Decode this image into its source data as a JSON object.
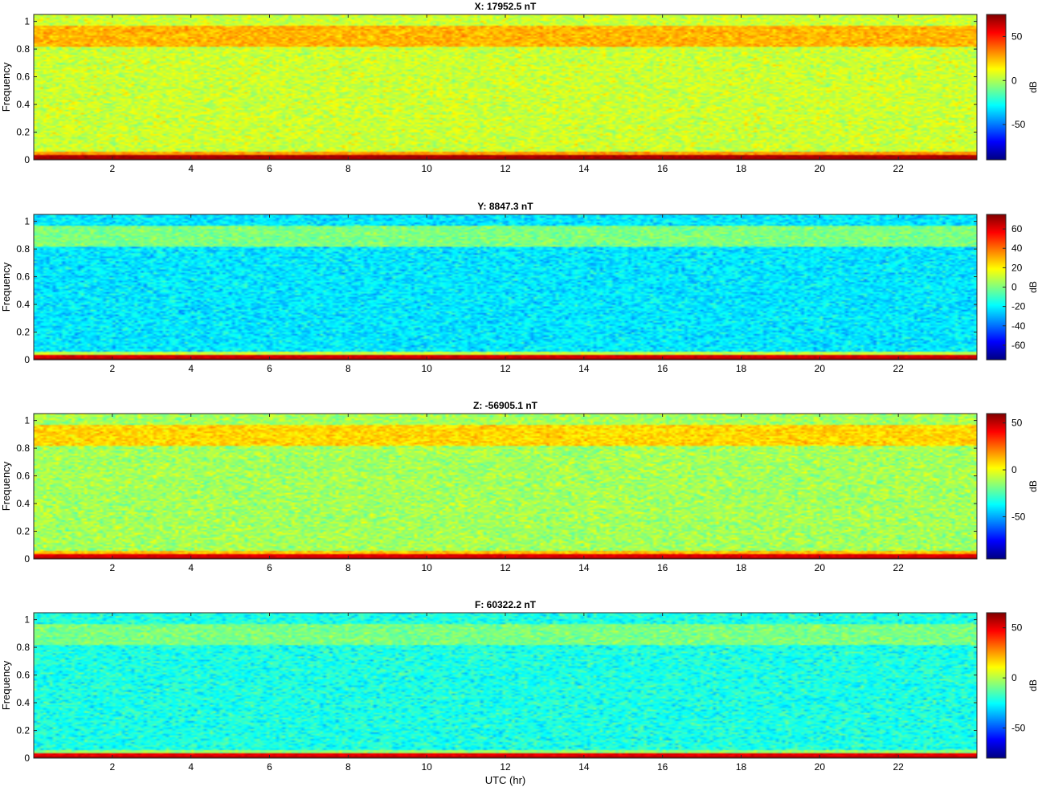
{
  "chart_data": [
    {
      "type": "heatmap",
      "title": "X: 17952.5 nT",
      "ylabel": "Frequency",
      "xlabel": "",
      "x_ticks": [
        2,
        4,
        6,
        8,
        10,
        12,
        14,
        16,
        18,
        20,
        22
      ],
      "y_ticks": [
        0,
        0.2,
        0.4,
        0.6,
        0.8,
        1
      ],
      "xlim": [
        0,
        24
      ],
      "ylim": [
        0,
        1.05
      ],
      "colorbar": {
        "label": "dB",
        "ticks": [
          -50,
          0,
          50
        ],
        "range": [
          -90,
          75
        ]
      },
      "levels": {
        "floor": 5,
        "band_upper": 25,
        "band_lower": 30,
        "base": 68,
        "dark_line": 72
      }
    },
    {
      "type": "heatmap",
      "title": "Y: 8847.3 nT",
      "ylabel": "Frequency",
      "xlabel": "",
      "x_ticks": [
        2,
        4,
        6,
        8,
        10,
        12,
        14,
        16,
        18,
        20,
        22
      ],
      "y_ticks": [
        0,
        0.2,
        0.4,
        0.6,
        0.8,
        1
      ],
      "xlim": [
        0,
        24
      ],
      "ylim": [
        0,
        1.05
      ],
      "colorbar": {
        "label": "dB",
        "ticks": [
          -60,
          -40,
          -20,
          0,
          20,
          40,
          60
        ],
        "range": [
          -75,
          75
        ]
      },
      "levels": {
        "floor": -22,
        "band_upper": 0,
        "band_lower": 10,
        "base": 62,
        "dark_line": 72
      }
    },
    {
      "type": "heatmap",
      "title": "Z: -56905.1 nT",
      "ylabel": "Frequency",
      "xlabel": "",
      "x_ticks": [
        2,
        4,
        6,
        8,
        10,
        12,
        14,
        16,
        18,
        20,
        22
      ],
      "y_ticks": [
        0,
        0.2,
        0.4,
        0.6,
        0.8,
        1
      ],
      "xlim": [
        0,
        24
      ],
      "ylim": [
        0,
        1.05
      ],
      "colorbar": {
        "label": "dB",
        "ticks": [
          -50,
          0,
          50
        ],
        "range": [
          -95,
          60
        ]
      },
      "levels": {
        "floor": -12,
        "band_upper": 8,
        "band_lower": 12,
        "base": 45,
        "dark_line": 55
      }
    },
    {
      "type": "heatmap",
      "title": "F: 60322.2 nT",
      "ylabel": "Frequency",
      "xlabel": "UTC (hr)",
      "x_ticks": [
        2,
        4,
        6,
        8,
        10,
        12,
        14,
        16,
        18,
        20,
        22
      ],
      "y_ticks": [
        0,
        0.2,
        0.4,
        0.6,
        0.8,
        1
      ],
      "xlim": [
        0,
        24
      ],
      "ylim": [
        0,
        1.05
      ],
      "colorbar": {
        "label": "dB",
        "ticks": [
          -50,
          0,
          50
        ],
        "range": [
          -80,
          65
        ]
      },
      "levels": {
        "floor": -22,
        "band_upper": -8,
        "band_lower": -5,
        "base": 50,
        "dark_line": 60
      }
    }
  ]
}
